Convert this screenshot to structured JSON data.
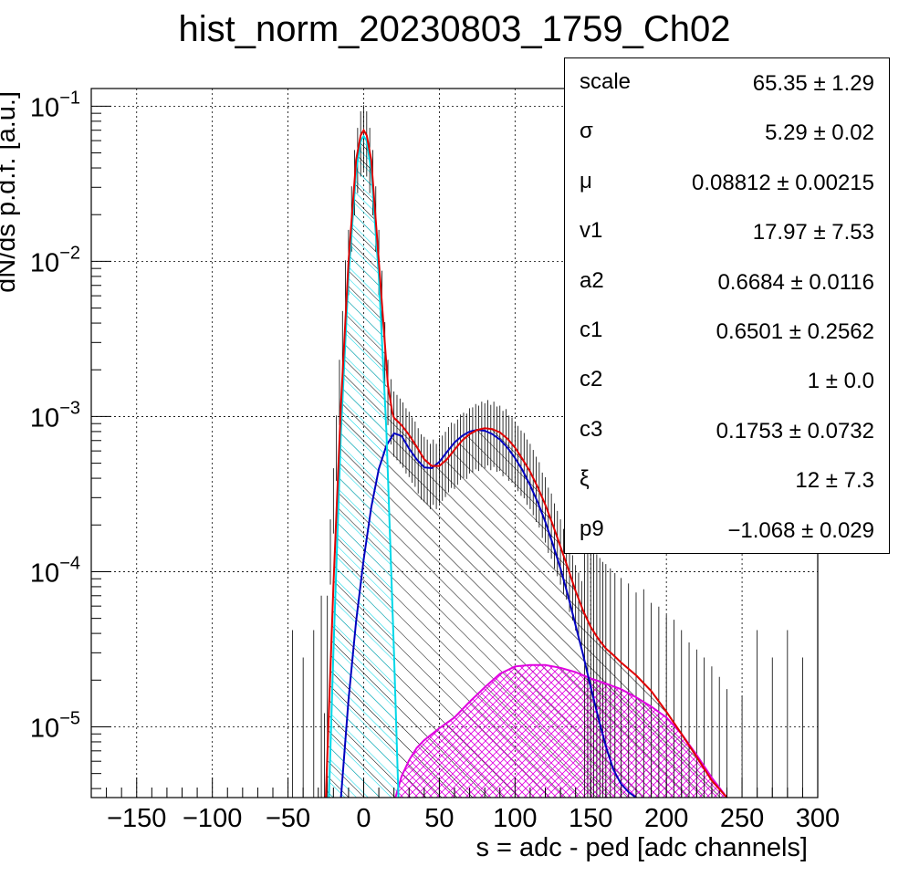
{
  "title": "hist_norm_20230803_1759_Ch02",
  "stats": [
    {
      "name": "scale",
      "value": "65.35 ± 1.29"
    },
    {
      "name": "σ",
      "value": "5.29 ± 0.02"
    },
    {
      "name": "μ",
      "value": "0.08812 ± 0.00215"
    },
    {
      "name": "v1",
      "value": "17.97 ± 7.53"
    },
    {
      "name": "a2",
      "value": "0.6684 ± 0.0116"
    },
    {
      "name": "c1",
      "value": "0.6501 ± 0.2562"
    },
    {
      "name": "c2",
      "value": "1 ± 0.0"
    },
    {
      "name": "c3",
      "value": "0.1753 ± 0.0732"
    },
    {
      "name": "ξ",
      "value": "12 ± 7.3"
    },
    {
      "name": "p9",
      "value": "−1.068 ± 0.029"
    }
  ],
  "chart_data": {
    "type": "line",
    "title": "hist_norm_20230803_1759_Ch02",
    "xlabel": "s = adc - ped [adc channels]",
    "ylabel": "dN/ds p.d.f. [a.u.]",
    "xlim": [
      -180,
      300
    ],
    "ylim": [
      3.5e-06,
      0.13
    ],
    "yscale": "log",
    "grid": true,
    "x_ticks": [
      -150,
      -100,
      -50,
      0,
      50,
      100,
      150,
      200,
      250,
      300
    ],
    "x_tick_labels": [
      "−150",
      "−100",
      "−50",
      "0",
      "50",
      "100",
      "150",
      "200",
      "250",
      "300"
    ],
    "y_ticks": [
      1e-05,
      0.0001,
      0.001,
      0.01,
      0.1
    ],
    "y_tick_labels": [
      {
        "base": "10",
        "exp": "−5"
      },
      {
        "base": "10",
        "exp": "−4"
      },
      {
        "base": "10",
        "exp": "−3"
      },
      {
        "base": "10",
        "exp": "−2"
      },
      {
        "base": "10",
        "exp": "−1"
      }
    ],
    "colors": {
      "total": "#e00000",
      "pedestal": "#00d8e8",
      "single_pe": "#0000c0",
      "multi_pe": "#e000e0",
      "data": "#000000"
    },
    "series": [
      {
        "key": "total",
        "x": [
          -25,
          -20,
          -15,
          -10,
          -5,
          -2,
          0,
          2,
          5,
          10,
          13,
          16,
          19,
          20,
          22,
          25,
          30,
          35,
          40,
          45,
          50,
          55,
          60,
          65,
          70,
          75,
          80,
          85,
          90,
          95,
          100,
          105,
          110,
          115,
          120,
          125,
          130,
          135,
          140,
          145,
          150,
          155,
          160,
          165,
          170,
          180,
          190,
          200,
          210,
          220,
          230,
          240
        ],
        "y": [
          3.5e-06,
          8e-05,
          0.0012,
          0.01,
          0.045,
          0.065,
          0.07,
          0.065,
          0.045,
          0.01,
          0.004,
          0.0016,
          0.00105,
          0.00098,
          0.00094,
          0.00088,
          0.00076,
          0.00064,
          0.00053,
          0.00048,
          0.00048,
          0.00053,
          0.00061,
          0.0007,
          0.00077,
          0.00082,
          0.00084,
          0.00083,
          0.00079,
          0.00072,
          0.00063,
          0.00053,
          0.00044,
          0.00035,
          0.00027,
          0.0002,
          0.000145,
          0.000105,
          7.5e-05,
          5.6e-05,
          4.4e-05,
          3.7e-05,
          3.2e-05,
          2.9e-05,
          2.6e-05,
          2.15e-05,
          1.7e-05,
          1.25e-05,
          9e-06,
          6.4e-06,
          4.5e-06,
          3.5e-06
        ]
      },
      {
        "key": "pedestal",
        "x": [
          -23,
          -20,
          -15,
          -10,
          -5,
          -2,
          0,
          2,
          5,
          10,
          15,
          20,
          23
        ],
        "y": [
          3.5e-06,
          3e-05,
          0.0008,
          0.008,
          0.038,
          0.06,
          0.064,
          0.06,
          0.038,
          0.008,
          0.0008,
          3e-05,
          3.5e-06
        ]
      },
      {
        "key": "single_pe",
        "x": [
          -15,
          -10,
          -5,
          0,
          5,
          10,
          15,
          20,
          25,
          30,
          35,
          40,
          45,
          50,
          55,
          60,
          65,
          70,
          75,
          80,
          85,
          90,
          95,
          100,
          105,
          110,
          115,
          120,
          125,
          130,
          135,
          140,
          145,
          150,
          155,
          160,
          165,
          170,
          175,
          180
        ],
        "y": [
          3.5e-06,
          1.5e-05,
          4.8e-05,
          0.00012,
          0.00026,
          0.00046,
          0.00065,
          0.00078,
          0.00075,
          0.00062,
          0.00053,
          0.00047,
          0.000465,
          0.00051,
          0.00059,
          0.00068,
          0.00075,
          0.0008,
          0.00082,
          0.00081,
          0.00077,
          0.00071,
          0.00063,
          0.00054,
          0.00045,
          0.00036,
          0.00028,
          0.00021,
          0.00015,
          0.000105,
          7e-05,
          4.5e-05,
          2.9e-05,
          1.8e-05,
          1.15e-05,
          7.5e-06,
          5.3e-06,
          4.3e-06,
          3.8e-06,
          3.5e-06
        ]
      },
      {
        "key": "multi_pe",
        "x": [
          21,
          25,
          30,
          35,
          40,
          50,
          60,
          70,
          80,
          90,
          100,
          110,
          120,
          130,
          140,
          150,
          160,
          170,
          180,
          190,
          200,
          210,
          220,
          230,
          240
        ],
        "y": [
          3.5e-06,
          4.8e-06,
          6.1e-06,
          7.3e-06,
          8.2e-06,
          9.8e-06,
          1.15e-05,
          1.45e-05,
          1.8e-05,
          2.2e-05,
          2.45e-05,
          2.5e-05,
          2.5e-05,
          2.4e-05,
          2.25e-05,
          2.05e-05,
          1.9e-05,
          1.75e-05,
          1.55e-05,
          1.35e-05,
          1.15e-05,
          9e-06,
          6.6e-06,
          4.7e-06,
          3.5e-06
        ]
      }
    ],
    "data_points": {
      "x": [
        -47,
        -40,
        -33,
        -28,
        -26,
        -24,
        -22,
        -20,
        -18,
        -16,
        -14,
        -12,
        -10,
        -8,
        -6,
        -4,
        -2,
        0,
        2,
        4,
        6,
        8,
        10,
        12,
        14,
        16,
        18,
        20,
        22,
        24,
        26,
        28,
        30,
        32,
        34,
        36,
        38,
        40,
        42,
        44,
        46,
        48,
        50,
        52,
        54,
        56,
        58,
        60,
        62,
        64,
        66,
        68,
        70,
        72,
        74,
        76,
        78,
        80,
        82,
        84,
        86,
        88,
        90,
        92,
        94,
        96,
        98,
        100,
        102,
        104,
        106,
        108,
        110,
        112,
        114,
        116,
        118,
        120,
        122,
        124,
        126,
        128,
        130,
        132,
        134,
        136,
        138,
        140,
        142,
        144,
        146,
        148,
        150,
        152,
        154,
        156,
        158,
        160,
        163,
        166,
        170,
        175,
        180,
        185,
        190,
        195,
        200,
        205,
        210,
        215,
        220,
        225,
        230,
        235,
        240,
        250,
        260,
        270,
        280,
        290
      ],
      "y": [
        1.2e-05,
        8e-06,
        1.2e-05,
        2e-05,
        3.5e-06,
        2e-05,
        0.00015,
        0.00032,
        0.0007,
        0.0016,
        0.0033,
        0.007,
        0.011,
        0.021,
        0.036,
        0.05,
        0.064,
        0.07,
        0.064,
        0.05,
        0.036,
        0.021,
        0.011,
        0.006,
        0.0028,
        0.0016,
        0.0012,
        0.001,
        0.00095,
        0.0009,
        0.00085,
        0.00078,
        0.00074,
        0.00068,
        0.00064,
        0.00058,
        0.00053,
        0.00051,
        0.00049,
        0.00046,
        0.00049,
        0.00046,
        0.0005,
        0.00052,
        0.00055,
        0.00059,
        0.00063,
        0.00062,
        0.00066,
        0.00071,
        0.00073,
        0.00072,
        0.00078,
        0.00079,
        0.00083,
        0.00081,
        0.00086,
        0.00084,
        0.00088,
        0.00082,
        0.00086,
        0.0008,
        0.00081,
        0.00075,
        0.00077,
        0.0007,
        0.00068,
        0.00064,
        0.0006,
        0.00056,
        0.00054,
        0.00049,
        0.00046,
        0.00042,
        0.00038,
        0.00035,
        0.0003,
        0.00028,
        0.00024,
        0.00022,
        0.00019,
        0.00017,
        0.00015,
        0.00013,
        0.00012,
        0.0001,
        8.8e-05,
        7.6e-05,
        6.8e-05,
        6e-05,
        5.2e-05,
        4.9e-05,
        4.3e-05,
        4.2e-05,
        3.7e-05,
        3.5e-05,
        3.3e-05,
        3.2e-05,
        3e-05,
        2.8e-05,
        2.6e-05,
        2.4e-05,
        2.1e-05,
        2.2e-05,
        1.8e-05,
        1.7e-05,
        1.5e-05,
        1.4e-05,
        1.2e-05,
        1e-05,
        9e-06,
        8e-06,
        7e-06,
        6e-06,
        5e-06,
        4.5e-06,
        1.2e-05,
        8e-06,
        1.2e-05,
        8e-06
      ]
    }
  }
}
